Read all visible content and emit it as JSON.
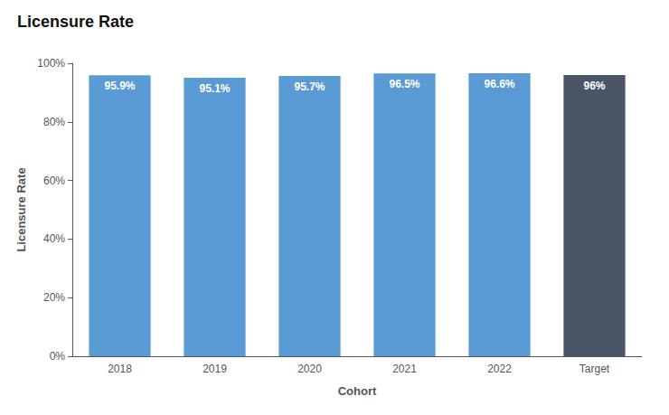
{
  "chart_data": {
    "type": "bar",
    "title": "Licensure Rate",
    "xlabel": "Cohort",
    "ylabel": "Licensure Rate",
    "categories": [
      "2018",
      "2019",
      "2020",
      "2021",
      "2022",
      "Target"
    ],
    "values": [
      0.959,
      0.951,
      0.957,
      0.965,
      0.966,
      0.96
    ],
    "value_labels": [
      "95.9%",
      "95.1%",
      "95.7%",
      "96.5%",
      "96.6%",
      "96%"
    ],
    "colors": [
      "#5B9BD5",
      "#5B9BD5",
      "#5B9BD5",
      "#5B9BD5",
      "#5B9BD5",
      "#4A5568"
    ],
    "ylim": [
      0,
      1.0
    ],
    "yticks": [
      {
        "value": 0,
        "label": "0%"
      },
      {
        "value": 0.2,
        "label": "20%"
      },
      {
        "value": 0.4,
        "label": "40%"
      },
      {
        "value": 0.6,
        "label": "60%"
      },
      {
        "value": 0.8,
        "label": "80%"
      },
      {
        "value": 1.0,
        "label": "100%"
      }
    ],
    "grid": false,
    "data_labels": true
  }
}
